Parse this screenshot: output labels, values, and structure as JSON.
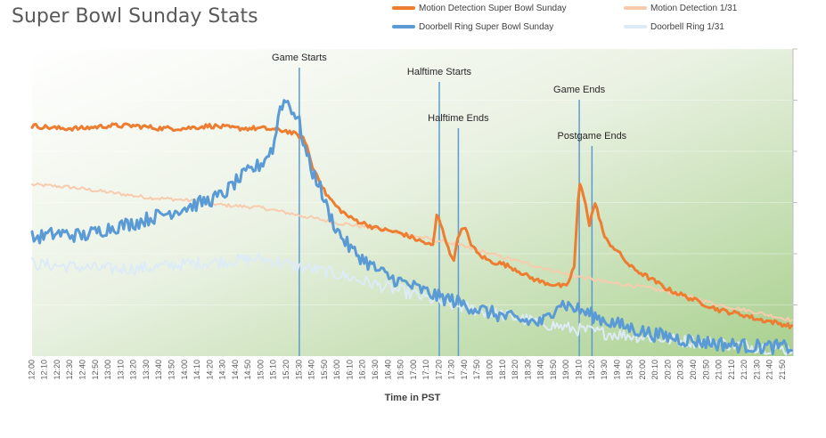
{
  "chart_data": {
    "type": "line",
    "title": "Super Bowl Sunday Stats",
    "xlabel": "Time in PST",
    "ylabel": "",
    "x_ticks": [
      "12:00",
      "12:10",
      "12:20",
      "12:30",
      "12:40",
      "12:50",
      "13:00",
      "13:10",
      "13:20",
      "13:30",
      "13:40",
      "13:50",
      "14:00",
      "14:10",
      "14:20",
      "14:30",
      "14:40",
      "14:50",
      "15:00",
      "15:10",
      "15:20",
      "15:30",
      "15:40",
      "15:50",
      "16:00",
      "16:10",
      "16:20",
      "16:30",
      "16:40",
      "16:50",
      "17:00",
      "17:10",
      "17:20",
      "17:30",
      "17:40",
      "17:50",
      "18:00",
      "18:10",
      "18:20",
      "18:30",
      "18:40",
      "18:50",
      "19:00",
      "19:10",
      "19:20",
      "19:30",
      "19:40",
      "19:50",
      "20:00",
      "20:10",
      "20:20",
      "20:30",
      "20:40",
      "20:50",
      "21:00",
      "21:10",
      "21:20",
      "21:30",
      "21:40",
      "21:50"
    ],
    "x_range_minutes": [
      720,
      1318
    ],
    "ylim": [
      0,
      6
    ],
    "grid": true,
    "legend_position": "top",
    "series": [
      {
        "name": "Motion Detection Super Bowl Sunday",
        "color": "#ED7D31",
        "width": 3,
        "points": [
          [
            720,
            4.5
          ],
          [
            740,
            4.45
          ],
          [
            760,
            4.45
          ],
          [
            780,
            4.5
          ],
          [
            800,
            4.5
          ],
          [
            820,
            4.45
          ],
          [
            840,
            4.45
          ],
          [
            860,
            4.5
          ],
          [
            880,
            4.45
          ],
          [
            900,
            4.45
          ],
          [
            920,
            4.4
          ],
          [
            930,
            4.3
          ],
          [
            935,
            4.2
          ],
          [
            940,
            3.7
          ],
          [
            945,
            3.5
          ],
          [
            950,
            3.2
          ],
          [
            960,
            2.9
          ],
          [
            970,
            2.7
          ],
          [
            980,
            2.6
          ],
          [
            990,
            2.5
          ],
          [
            1000,
            2.45
          ],
          [
            1010,
            2.4
          ],
          [
            1020,
            2.3
          ],
          [
            1030,
            2.2
          ],
          [
            1035,
            2.15
          ],
          [
            1038,
            2.75
          ],
          [
            1042,
            2.55
          ],
          [
            1048,
            2.0
          ],
          [
            1052,
            1.9
          ],
          [
            1055,
            2.4
          ],
          [
            1060,
            2.5
          ],
          [
            1065,
            2.2
          ],
          [
            1070,
            2.0
          ],
          [
            1080,
            1.85
          ],
          [
            1090,
            1.8
          ],
          [
            1100,
            1.7
          ],
          [
            1110,
            1.55
          ],
          [
            1120,
            1.45
          ],
          [
            1130,
            1.4
          ],
          [
            1140,
            1.35
          ],
          [
            1146,
            1.75
          ],
          [
            1150,
            3.4
          ],
          [
            1155,
            3.0
          ],
          [
            1158,
            2.55
          ],
          [
            1162,
            3.0
          ],
          [
            1166,
            2.7
          ],
          [
            1170,
            2.3
          ],
          [
            1180,
            2.05
          ],
          [
            1190,
            1.75
          ],
          [
            1200,
            1.6
          ],
          [
            1210,
            1.45
          ],
          [
            1220,
            1.3
          ],
          [
            1230,
            1.2
          ],
          [
            1240,
            1.1
          ],
          [
            1250,
            1.0
          ],
          [
            1260,
            0.9
          ],
          [
            1270,
            0.85
          ],
          [
            1280,
            0.8
          ],
          [
            1290,
            0.72
          ],
          [
            1300,
            0.68
          ],
          [
            1310,
            0.62
          ],
          [
            1318,
            0.58
          ]
        ]
      },
      {
        "name": "Motion Detection 1/31",
        "color": "#F8CBAD",
        "width": 2,
        "points": [
          [
            720,
            3.35
          ],
          [
            750,
            3.3
          ],
          [
            780,
            3.2
          ],
          [
            810,
            3.1
          ],
          [
            840,
            3.05
          ],
          [
            870,
            2.95
          ],
          [
            900,
            2.9
          ],
          [
            930,
            2.75
          ],
          [
            960,
            2.6
          ],
          [
            990,
            2.5
          ],
          [
            1020,
            2.35
          ],
          [
            1050,
            2.2
          ],
          [
            1080,
            2.0
          ],
          [
            1110,
            1.8
          ],
          [
            1140,
            1.6
          ],
          [
            1170,
            1.45
          ],
          [
            1200,
            1.35
          ],
          [
            1230,
            1.2
          ],
          [
            1260,
            1.0
          ],
          [
            1290,
            0.85
          ],
          [
            1318,
            0.7
          ]
        ]
      },
      {
        "name": "Doorbell Ring Super Bowl Sunday",
        "color": "#5B9BD5",
        "width": 3,
        "points": [
          [
            720,
            2.3
          ],
          [
            740,
            2.4
          ],
          [
            760,
            2.35
          ],
          [
            780,
            2.5
          ],
          [
            800,
            2.6
          ],
          [
            820,
            2.75
          ],
          [
            840,
            2.9
          ],
          [
            860,
            3.05
          ],
          [
            870,
            3.15
          ],
          [
            880,
            3.4
          ],
          [
            890,
            3.6
          ],
          [
            900,
            3.75
          ],
          [
            910,
            4.1
          ],
          [
            915,
            4.9
          ],
          [
            920,
            5.0
          ],
          [
            925,
            4.8
          ],
          [
            930,
            4.55
          ],
          [
            935,
            4.0
          ],
          [
            940,
            3.6
          ],
          [
            945,
            3.4
          ],
          [
            950,
            3.0
          ],
          [
            955,
            2.7
          ],
          [
            960,
            2.45
          ],
          [
            970,
            2.1
          ],
          [
            980,
            1.9
          ],
          [
            990,
            1.7
          ],
          [
            1000,
            1.55
          ],
          [
            1010,
            1.45
          ],
          [
            1020,
            1.35
          ],
          [
            1030,
            1.25
          ],
          [
            1040,
            1.15
          ],
          [
            1050,
            1.1
          ],
          [
            1060,
            1.0
          ],
          [
            1070,
            0.92
          ],
          [
            1080,
            0.85
          ],
          [
            1090,
            0.78
          ],
          [
            1100,
            0.72
          ],
          [
            1110,
            0.68
          ],
          [
            1120,
            0.65
          ],
          [
            1128,
            0.8
          ],
          [
            1132,
            1.05
          ],
          [
            1140,
            1.0
          ],
          [
            1150,
            0.9
          ],
          [
            1160,
            0.8
          ],
          [
            1170,
            0.7
          ],
          [
            1180,
            0.62
          ],
          [
            1190,
            0.55
          ],
          [
            1200,
            0.48
          ],
          [
            1210,
            0.42
          ],
          [
            1220,
            0.38
          ],
          [
            1230,
            0.33
          ],
          [
            1240,
            0.3
          ],
          [
            1250,
            0.27
          ],
          [
            1260,
            0.24
          ],
          [
            1270,
            0.22
          ],
          [
            1280,
            0.2
          ],
          [
            1290,
            0.19
          ],
          [
            1300,
            0.18
          ],
          [
            1310,
            0.18
          ],
          [
            1318,
            0.17
          ]
        ]
      },
      {
        "name": "Doorbell Ring 1/31",
        "color": "#DDEBF7",
        "width": 2,
        "points": [
          [
            720,
            1.8
          ],
          [
            750,
            1.75
          ],
          [
            780,
            1.7
          ],
          [
            810,
            1.72
          ],
          [
            840,
            1.8
          ],
          [
            870,
            1.85
          ],
          [
            900,
            1.9
          ],
          [
            930,
            1.75
          ],
          [
            960,
            1.6
          ],
          [
            990,
            1.4
          ],
          [
            1020,
            1.2
          ],
          [
            1050,
            1.0
          ],
          [
            1080,
            0.85
          ],
          [
            1110,
            0.7
          ],
          [
            1140,
            0.55
          ],
          [
            1170,
            0.45
          ],
          [
            1200,
            0.38
          ],
          [
            1230,
            0.3
          ],
          [
            1260,
            0.25
          ],
          [
            1290,
            0.18
          ],
          [
            1318,
            0.12
          ]
        ]
      }
    ],
    "annotations": [
      {
        "label": "Game Starts",
        "x": 930
      },
      {
        "label": "Halftime Starts",
        "x": 1040
      },
      {
        "label": "Halftime Ends",
        "x": 1055
      },
      {
        "label": "Game Ends",
        "x": 1150
      },
      {
        "label": "Postgame Ends",
        "x": 1160
      }
    ]
  }
}
